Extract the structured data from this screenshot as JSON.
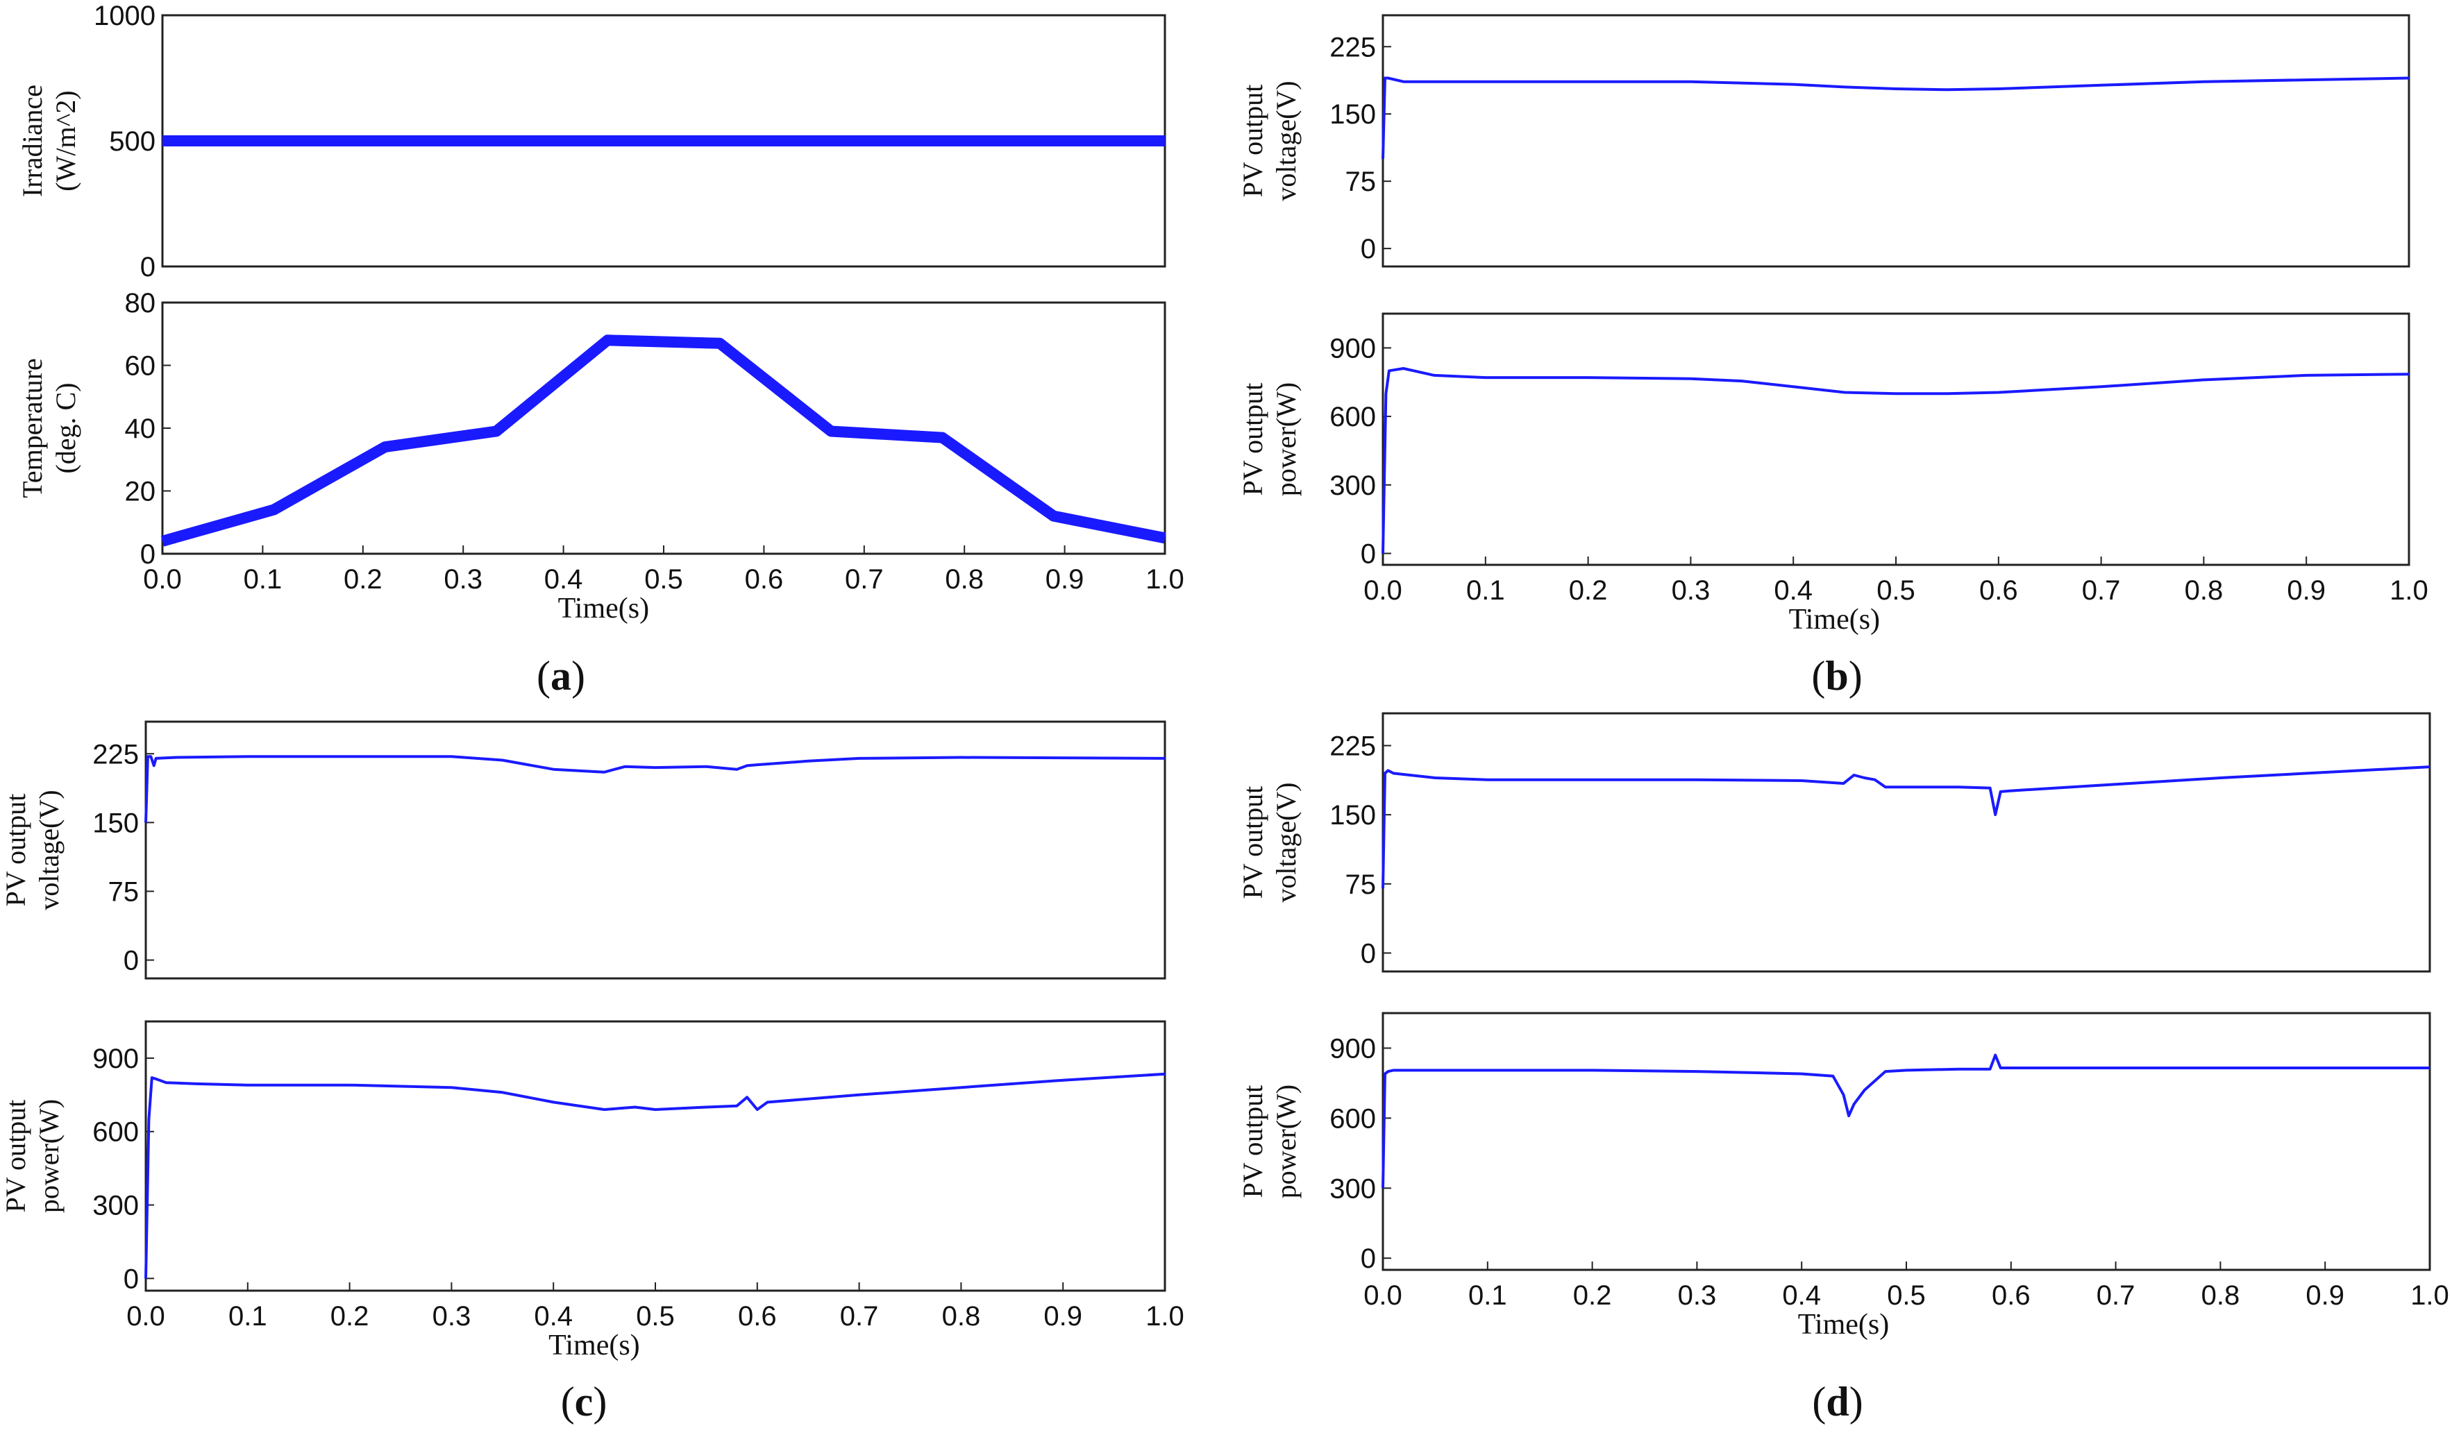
{
  "figure": {
    "colors": {
      "series": "#1a1aff",
      "axis": "#222222",
      "text": "#111111"
    }
  },
  "chart_data": [
    {
      "id": "a-top",
      "type": "line",
      "panel": "a",
      "ylabel": [
        "Irradiance",
        "(W/m^2)"
      ],
      "ylim": [
        0,
        1000
      ],
      "yticks": [
        "1000",
        "500",
        "0"
      ],
      "ytick_values": [
        1000,
        500,
        0
      ],
      "xlim": [
        0,
        1
      ],
      "series": [
        {
          "name": "Irradiance",
          "thick": true,
          "x": [
            0,
            1
          ],
          "y": [
            500,
            500
          ]
        }
      ]
    },
    {
      "id": "a-bottom",
      "type": "line",
      "panel": "a",
      "ylabel": [
        "Temperature",
        "(deg. C)"
      ],
      "ylim": [
        0,
        80
      ],
      "yticks": [
        "80",
        "60",
        "40",
        "20",
        "0"
      ],
      "ytick_values": [
        80,
        60,
        40,
        20,
        0
      ],
      "xlim": [
        0,
        1
      ],
      "xticks": [
        "0.0",
        "0.1",
        "0.2",
        "0.3",
        "0.4",
        "0.5",
        "0.6",
        "0.7",
        "0.8",
        "0.9",
        "1.0"
      ],
      "xlabel": "Time(s)",
      "series": [
        {
          "name": "Temperature",
          "thick": true,
          "x": [
            0,
            0.111,
            0.222,
            0.333,
            0.444,
            0.556,
            0.667,
            0.778,
            0.889,
            1.0
          ],
          "y": [
            4,
            14,
            34,
            39,
            68,
            67,
            39,
            37,
            12,
            5
          ]
        }
      ]
    },
    {
      "id": "b-top",
      "type": "line",
      "panel": "b",
      "ylabel": [
        "PV output",
        "voltage(V)"
      ],
      "ylim": [
        -20,
        260
      ],
      "yticks": [
        "225",
        "150",
        "75",
        "0"
      ],
      "ytick_values": [
        225,
        150,
        75,
        0
      ],
      "xlim": [
        0,
        1
      ],
      "series": [
        {
          "name": "PV output voltage",
          "x": [
            0,
            0.002,
            0.005,
            0.02,
            0.1,
            0.3,
            0.4,
            0.45,
            0.5,
            0.55,
            0.6,
            0.7,
            0.8,
            0.9,
            1.0
          ],
          "y": [
            100,
            190,
            190,
            186,
            186,
            186,
            183,
            180,
            178,
            177,
            178,
            182,
            186,
            188,
            190
          ]
        }
      ]
    },
    {
      "id": "b-bottom",
      "type": "line",
      "panel": "b",
      "ylabel": [
        "PV output",
        "power(W)"
      ],
      "ylim": [
        -50,
        1050
      ],
      "yticks": [
        "900",
        "600",
        "300",
        "0"
      ],
      "ytick_values": [
        900,
        600,
        300,
        0
      ],
      "xlim": [
        0,
        1
      ],
      "xticks": [
        "0.0",
        "0.1",
        "0.2",
        "0.3",
        "0.4",
        "0.5",
        "0.6",
        "0.7",
        "0.8",
        "0.9",
        "1.0"
      ],
      "xlabel": "Time(s)",
      "series": [
        {
          "name": "PV output power",
          "x": [
            0,
            0.003,
            0.006,
            0.02,
            0.05,
            0.1,
            0.2,
            0.3,
            0.35,
            0.4,
            0.45,
            0.5,
            0.55,
            0.6,
            0.7,
            0.8,
            0.9,
            1.0
          ],
          "y": [
            0,
            700,
            800,
            810,
            780,
            770,
            770,
            765,
            755,
            730,
            705,
            700,
            700,
            705,
            730,
            760,
            780,
            785
          ]
        }
      ]
    },
    {
      "id": "c-top",
      "type": "line",
      "panel": "c",
      "ylabel": [
        "PV output",
        "voltage(V)"
      ],
      "ylim": [
        -20,
        260
      ],
      "yticks": [
        "225",
        "150",
        "75",
        "0"
      ],
      "ytick_values": [
        225,
        150,
        75,
        0
      ],
      "xlim": [
        0,
        1
      ],
      "series": [
        {
          "name": "PV output voltage",
          "x": [
            0,
            0.002,
            0.005,
            0.008,
            0.01,
            0.03,
            0.1,
            0.3,
            0.35,
            0.4,
            0.45,
            0.47,
            0.5,
            0.55,
            0.58,
            0.59,
            0.6,
            0.65,
            0.7,
            0.8,
            1.0
          ],
          "y": [
            150,
            222,
            222,
            212,
            220,
            221,
            222,
            222,
            218,
            208,
            205,
            211,
            210,
            211,
            208,
            212,
            213,
            217,
            220,
            221,
            220
          ]
        }
      ]
    },
    {
      "id": "c-bottom",
      "type": "line",
      "panel": "c",
      "ylabel": [
        "PV output",
        "power(W)"
      ],
      "ylim": [
        -50,
        1050
      ],
      "yticks": [
        "900",
        "600",
        "300",
        "0"
      ],
      "ytick_values": [
        900,
        600,
        300,
        0
      ],
      "xlim": [
        0,
        1
      ],
      "xticks": [
        "0.0",
        "0.1",
        "0.2",
        "0.3",
        "0.4",
        "0.5",
        "0.6",
        "0.7",
        "0.8",
        "0.9",
        "1.0"
      ],
      "xlabel": "Time(s)",
      "series": [
        {
          "name": "PV output power",
          "x": [
            0,
            0.003,
            0.006,
            0.01,
            0.02,
            0.05,
            0.1,
            0.2,
            0.3,
            0.35,
            0.4,
            0.45,
            0.48,
            0.5,
            0.55,
            0.58,
            0.59,
            0.6,
            0.61,
            0.7,
            0.8,
            0.9,
            1.0
          ],
          "y": [
            0,
            650,
            820,
            815,
            800,
            795,
            790,
            790,
            780,
            760,
            720,
            690,
            700,
            690,
            700,
            705,
            740,
            690,
            720,
            750,
            780,
            810,
            835
          ]
        }
      ]
    },
    {
      "id": "d-top",
      "type": "line",
      "panel": "d",
      "ylabel": [
        "PV output",
        "voltage(V)"
      ],
      "ylim": [
        -20,
        260
      ],
      "yticks": [
        "225",
        "150",
        "75",
        "0"
      ],
      "ytick_values": [
        225,
        150,
        75,
        0
      ],
      "xlim": [
        0,
        1
      ],
      "series": [
        {
          "name": "PV output voltage",
          "x": [
            0,
            0.002,
            0.005,
            0.01,
            0.05,
            0.1,
            0.2,
            0.3,
            0.4,
            0.44,
            0.45,
            0.46,
            0.47,
            0.48,
            0.5,
            0.55,
            0.58,
            0.585,
            0.59,
            0.6,
            0.7,
            0.8,
            0.9,
            1.0
          ],
          "y": [
            70,
            195,
            198,
            195,
            190,
            188,
            188,
            188,
            187,
            184,
            193,
            190,
            188,
            180,
            180,
            180,
            179,
            150,
            175,
            176,
            183,
            190,
            196,
            202
          ]
        }
      ]
    },
    {
      "id": "d-bottom",
      "type": "line",
      "panel": "d",
      "ylabel": [
        "PV output",
        "power(W)"
      ],
      "ylim": [
        -50,
        1050
      ],
      "yticks": [
        "900",
        "600",
        "300",
        "0"
      ],
      "ytick_values": [
        900,
        600,
        300,
        0
      ],
      "xlim": [
        0,
        1
      ],
      "xticks": [
        "0.0",
        "0.1",
        "0.2",
        "0.3",
        "0.4",
        "0.5",
        "0.6",
        "0.7",
        "0.8",
        "0.9",
        "1.0"
      ],
      "xlabel": "Time(s)",
      "series": [
        {
          "name": "PV output power",
          "x": [
            0,
            0.002,
            0.005,
            0.01,
            0.05,
            0.1,
            0.2,
            0.3,
            0.35,
            0.4,
            0.43,
            0.44,
            0.445,
            0.45,
            0.46,
            0.47,
            0.48,
            0.5,
            0.55,
            0.58,
            0.585,
            0.59,
            0.6,
            0.7,
            0.8,
            0.9,
            1.0
          ],
          "y": [
            300,
            790,
            800,
            805,
            805,
            805,
            805,
            800,
            795,
            790,
            780,
            700,
            610,
            660,
            720,
            760,
            800,
            805,
            810,
            810,
            870,
            815,
            815,
            815,
            815,
            815,
            815
          ]
        }
      ]
    }
  ],
  "captions": {
    "a": "a",
    "b": "b",
    "c": "c",
    "d": "d"
  }
}
